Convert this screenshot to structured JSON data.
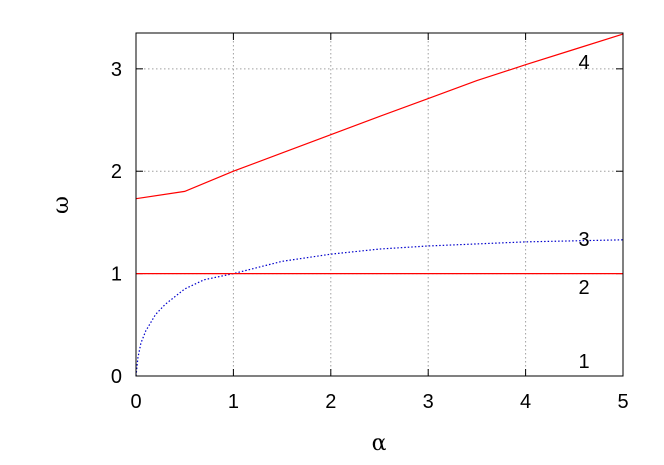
{
  "chart_data": {
    "type": "line",
    "title": "",
    "xlabel": "α",
    "ylabel": "ω",
    "xlim": [
      0,
      5
    ],
    "ylim": [
      0,
      3.35
    ],
    "x_ticks": [
      0,
      1,
      2,
      3,
      4,
      5
    ],
    "y_ticks": [
      0,
      1,
      2,
      3
    ],
    "grid": true,
    "series": [
      {
        "color": "#ff0000",
        "style": "solid",
        "x": [
          0,
          0.5,
          1,
          1.5,
          2,
          2.5,
          3,
          3.5,
          4,
          4.5,
          5
        ],
        "y": [
          1.732,
          1.803,
          2.0,
          2.179,
          2.357,
          2.535,
          2.71,
          2.885,
          3.04,
          3.19,
          3.34
        ]
      },
      {
        "color": "#0000cc",
        "style": "dotted",
        "x": [
          0,
          0.02,
          0.05,
          0.1,
          0.2,
          0.3,
          0.5,
          0.7,
          1,
          1.5,
          2,
          2.5,
          3,
          3.5,
          4,
          4.5,
          5
        ],
        "y": [
          0,
          0.18,
          0.32,
          0.44,
          0.6,
          0.7,
          0.85,
          0.94,
          1.0,
          1.12,
          1.19,
          1.24,
          1.27,
          1.29,
          1.31,
          1.32,
          1.33
        ]
      },
      {
        "color": "#ff0000",
        "style": "solid",
        "x": [
          0,
          5
        ],
        "y": [
          1,
          1
        ]
      }
    ],
    "annotations": [
      {
        "text": "1",
        "x": 4.6,
        "y": 0.08
      },
      {
        "text": "2",
        "x": 4.6,
        "y": 0.8
      },
      {
        "text": "3",
        "x": 4.6,
        "y": 1.27
      },
      {
        "text": "4",
        "x": 4.6,
        "y": 3.0
      }
    ]
  }
}
